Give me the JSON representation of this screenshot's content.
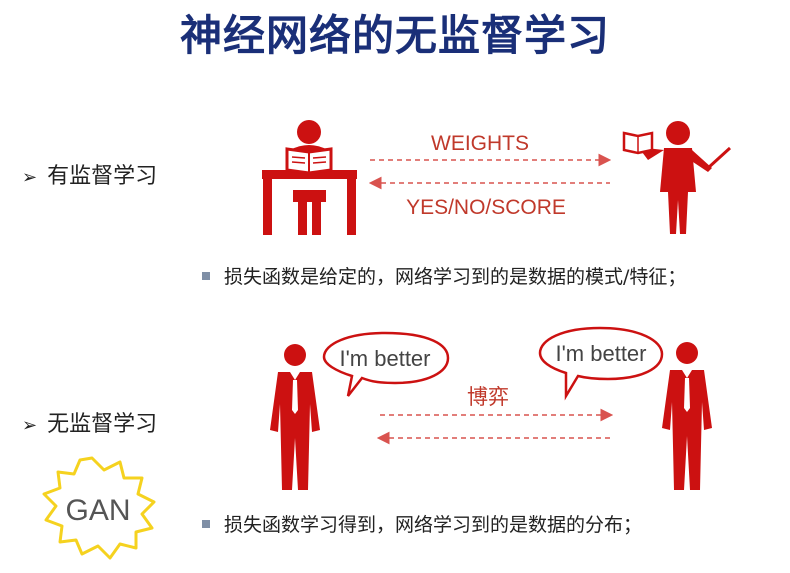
{
  "title": "神经网络的无监督学习",
  "supervised": {
    "label": "有监督学习",
    "arrow_top_label": "WEIGHTS",
    "arrow_bottom_label": "YES/NO/SCORE",
    "bullet": "损失函数是给定的，网络学习到的是数据的模式/特征；"
  },
  "unsupervised": {
    "label": "无监督学习",
    "speech_left": "I'm better",
    "speech_right": "I'm better",
    "arrow_label": "博弈",
    "badge": "GAN",
    "bullet": "损失函数学习得到，网络学习到的是数据的分布；"
  },
  "colors": {
    "title": "#1a2f78",
    "figure_red": "#cc1111",
    "arrow_red": "#d9534f",
    "badge_yellow": "#f5d21f",
    "bullet_square": "#7f8fa6"
  }
}
